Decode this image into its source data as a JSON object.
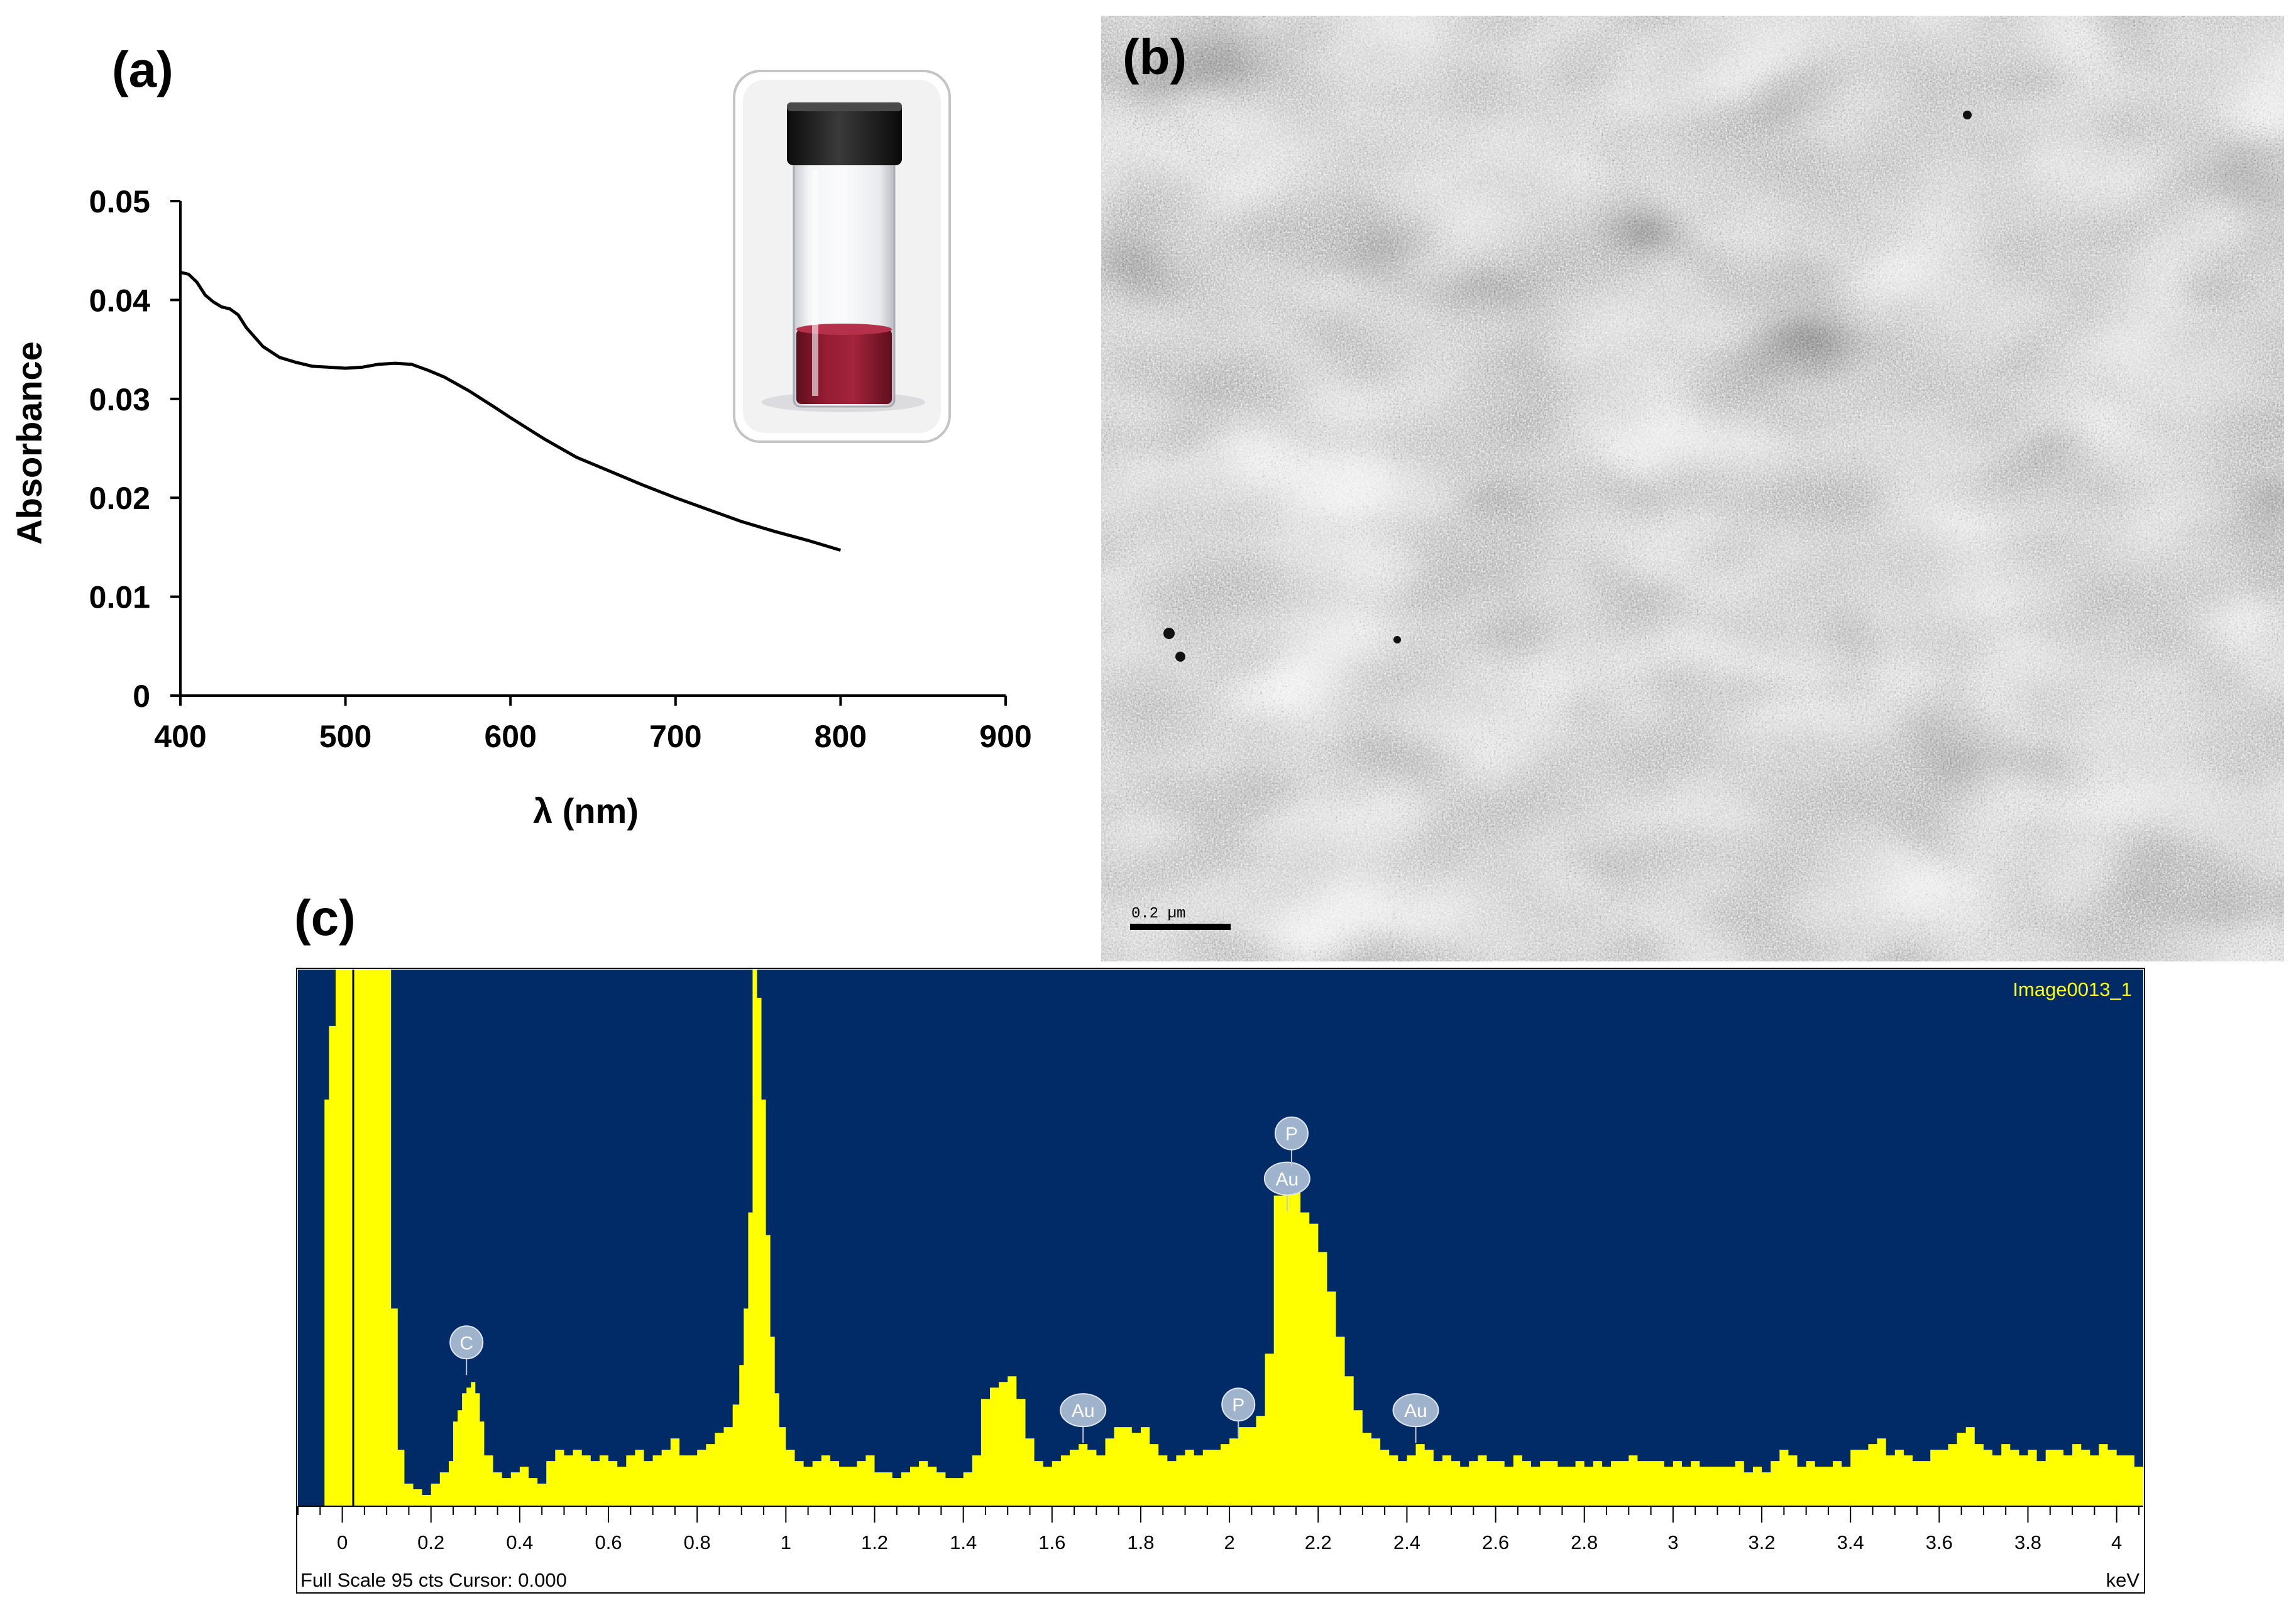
{
  "panels": {
    "a": "(a)",
    "b": "(b)",
    "c": "(c)"
  },
  "colors": {
    "eds_background": "#002b66",
    "eds_spectrum": "#ffff00",
    "peak_label_fill": "#9fb3cc",
    "solution": "#8b1a2c"
  },
  "chart_data": [
    {
      "type": "line",
      "panel": "a",
      "xlabel": "λ (nm)",
      "ylabel": "Absorbance",
      "xlim": [
        400,
        900
      ],
      "ylim": [
        0,
        0.05
      ],
      "xticks": [
        "400",
        "500",
        "600",
        "700",
        "800",
        "900"
      ],
      "yticks": [
        "0",
        "0.01",
        "0.02",
        "0.03",
        "0.04",
        "0.05"
      ],
      "grid": false,
      "inset": "photo of vial containing red gold nanoparticle solution",
      "series": [
        {
          "x": [
            400,
            405,
            410,
            415,
            420,
            425,
            430,
            435,
            440,
            450,
            460,
            470,
            480,
            490,
            500,
            510,
            520,
            530,
            540,
            550,
            560,
            575,
            590,
            600,
            620,
            640,
            660,
            680,
            700,
            720,
            740,
            760,
            780,
            800
          ],
          "y": [
            0.0428,
            0.0426,
            0.0418,
            0.0405,
            0.0398,
            0.0393,
            0.0391,
            0.0385,
            0.0372,
            0.0353,
            0.0342,
            0.0337,
            0.0333,
            0.0332,
            0.0331,
            0.0332,
            0.0335,
            0.0336,
            0.0335,
            0.0329,
            0.0322,
            0.0308,
            0.0292,
            0.0281,
            0.026,
            0.0241,
            0.0227,
            0.0213,
            0.02,
            0.0188,
            0.0176,
            0.0166,
            0.0157,
            0.0147
          ]
        }
      ]
    },
    {
      "type": "bar",
      "panel": "c",
      "title": "Image0013_1",
      "xlabel": "keV",
      "xlim": [
        -0.1,
        4.06
      ],
      "ylim": [
        0,
        95
      ],
      "xticks": [
        "0",
        "0.2",
        "0.4",
        "0.6",
        "0.8",
        "1",
        "1.2",
        "1.4",
        "1.6",
        "1.8",
        "2",
        "2.2",
        "2.4",
        "2.6",
        "2.8",
        "3",
        "3.2",
        "3.4",
        "3.6",
        "3.8",
        "4"
      ],
      "footer_left": "Full Scale 95 cts Cursor: 0.000",
      "peaks": [
        {
          "label": "C",
          "x": 0.28,
          "y": 29
        },
        {
          "label": "Au",
          "x": 1.67,
          "y": 17
        },
        {
          "label": "P",
          "x": 2.02,
          "y": 18
        },
        {
          "label": "Au",
          "x": 2.13,
          "y": 58
        },
        {
          "label": "P",
          "x": 2.14,
          "y": 66
        },
        {
          "label": "Au",
          "x": 2.42,
          "y": 17
        }
      ],
      "anchors": [
        [
          -0.1,
          0
        ],
        [
          -0.05,
          0
        ],
        [
          -0.04,
          72
        ],
        [
          -0.03,
          85
        ],
        [
          -0.015,
          100
        ],
        [
          0.1,
          100
        ],
        [
          0.11,
          35
        ],
        [
          0.125,
          10
        ],
        [
          0.14,
          4
        ],
        [
          0.16,
          3
        ],
        [
          0.18,
          2
        ],
        [
          0.2,
          4
        ],
        [
          0.22,
          6
        ],
        [
          0.24,
          8
        ],
        [
          0.25,
          15
        ],
        [
          0.26,
          17
        ],
        [
          0.27,
          20
        ],
        [
          0.28,
          21
        ],
        [
          0.29,
          22
        ],
        [
          0.3,
          20
        ],
        [
          0.31,
          15
        ],
        [
          0.32,
          9
        ],
        [
          0.34,
          6
        ],
        [
          0.36,
          5
        ],
        [
          0.38,
          6
        ],
        [
          0.4,
          7
        ],
        [
          0.42,
          5
        ],
        [
          0.44,
          4
        ],
        [
          0.46,
          8
        ],
        [
          0.48,
          10
        ],
        [
          0.5,
          9
        ],
        [
          0.52,
          10
        ],
        [
          0.54,
          9
        ],
        [
          0.56,
          8
        ],
        [
          0.58,
          9
        ],
        [
          0.6,
          8
        ],
        [
          0.62,
          7
        ],
        [
          0.64,
          9
        ],
        [
          0.66,
          10
        ],
        [
          0.68,
          8
        ],
        [
          0.7,
          9
        ],
        [
          0.72,
          10
        ],
        [
          0.74,
          12
        ],
        [
          0.76,
          9
        ],
        [
          0.78,
          9
        ],
        [
          0.8,
          10
        ],
        [
          0.82,
          11
        ],
        [
          0.84,
          13
        ],
        [
          0.86,
          14
        ],
        [
          0.88,
          18
        ],
        [
          0.895,
          25
        ],
        [
          0.905,
          35
        ],
        [
          0.915,
          52
        ],
        [
          0.925,
          100
        ],
        [
          0.935,
          90
        ],
        [
          0.945,
          72
        ],
        [
          0.955,
          48
        ],
        [
          0.965,
          30
        ],
        [
          0.975,
          20
        ],
        [
          0.985,
          14
        ],
        [
          1.0,
          10
        ],
        [
          1.02,
          8
        ],
        [
          1.04,
          7
        ],
        [
          1.06,
          8
        ],
        [
          1.08,
          9
        ],
        [
          1.1,
          8
        ],
        [
          1.12,
          7
        ],
        [
          1.14,
          7
        ],
        [
          1.16,
          8
        ],
        [
          1.18,
          9
        ],
        [
          1.2,
          6
        ],
        [
          1.22,
          6
        ],
        [
          1.24,
          5
        ],
        [
          1.26,
          6
        ],
        [
          1.28,
          7
        ],
        [
          1.3,
          8
        ],
        [
          1.32,
          7
        ],
        [
          1.34,
          6
        ],
        [
          1.36,
          5
        ],
        [
          1.38,
          5
        ],
        [
          1.4,
          6
        ],
        [
          1.42,
          9
        ],
        [
          1.44,
          19
        ],
        [
          1.46,
          21
        ],
        [
          1.48,
          22
        ],
        [
          1.5,
          23
        ],
        [
          1.52,
          19
        ],
        [
          1.54,
          12
        ],
        [
          1.56,
          8
        ],
        [
          1.58,
          7
        ],
        [
          1.6,
          8
        ],
        [
          1.62,
          9
        ],
        [
          1.64,
          10
        ],
        [
          1.66,
          11
        ],
        [
          1.68,
          10
        ],
        [
          1.7,
          9
        ],
        [
          1.72,
          12
        ],
        [
          1.74,
          14
        ],
        [
          1.76,
          14
        ],
        [
          1.78,
          13
        ],
        [
          1.8,
          14
        ],
        [
          1.82,
          11
        ],
        [
          1.84,
          9
        ],
        [
          1.86,
          8
        ],
        [
          1.88,
          9
        ],
        [
          1.9,
          10
        ],
        [
          1.92,
          9
        ],
        [
          1.94,
          10
        ],
        [
          1.96,
          10
        ],
        [
          1.98,
          11
        ],
        [
          2.0,
          12
        ],
        [
          2.02,
          14
        ],
        [
          2.04,
          14
        ],
        [
          2.06,
          16
        ],
        [
          2.08,
          27
        ],
        [
          2.1,
          55
        ],
        [
          2.12,
          56
        ],
        [
          2.14,
          57
        ],
        [
          2.16,
          52
        ],
        [
          2.18,
          50
        ],
        [
          2.2,
          45
        ],
        [
          2.22,
          38
        ],
        [
          2.24,
          30
        ],
        [
          2.26,
          23
        ],
        [
          2.28,
          17
        ],
        [
          2.3,
          13
        ],
        [
          2.32,
          12
        ],
        [
          2.34,
          10
        ],
        [
          2.36,
          9
        ],
        [
          2.38,
          8
        ],
        [
          2.4,
          9
        ],
        [
          2.42,
          11
        ],
        [
          2.44,
          10
        ],
        [
          2.46,
          8
        ],
        [
          2.48,
          9
        ],
        [
          2.5,
          8
        ],
        [
          2.52,
          7
        ],
        [
          2.54,
          8
        ],
        [
          2.56,
          9
        ],
        [
          2.58,
          8
        ],
        [
          2.6,
          8
        ],
        [
          2.62,
          7
        ],
        [
          2.64,
          9
        ],
        [
          2.66,
          8
        ],
        [
          2.68,
          7
        ],
        [
          2.7,
          8
        ],
        [
          2.72,
          8
        ],
        [
          2.74,
          7
        ],
        [
          2.76,
          7
        ],
        [
          2.78,
          8
        ],
        [
          2.8,
          7
        ],
        [
          2.82,
          8
        ],
        [
          2.84,
          7
        ],
        [
          2.86,
          8
        ],
        [
          2.88,
          8
        ],
        [
          2.9,
          9
        ],
        [
          2.92,
          8
        ],
        [
          2.94,
          8
        ],
        [
          2.96,
          8
        ],
        [
          2.98,
          7
        ],
        [
          3.0,
          8
        ],
        [
          3.02,
          7
        ],
        [
          3.04,
          8
        ],
        [
          3.06,
          7
        ],
        [
          3.08,
          7
        ],
        [
          3.1,
          7
        ],
        [
          3.12,
          7
        ],
        [
          3.14,
          8
        ],
        [
          3.16,
          6
        ],
        [
          3.18,
          7
        ],
        [
          3.2,
          6
        ],
        [
          3.22,
          8
        ],
        [
          3.24,
          10
        ],
        [
          3.26,
          9
        ],
        [
          3.28,
          7
        ],
        [
          3.3,
          8
        ],
        [
          3.32,
          7
        ],
        [
          3.34,
          7
        ],
        [
          3.36,
          8
        ],
        [
          3.38,
          7
        ],
        [
          3.4,
          10
        ],
        [
          3.42,
          10
        ],
        [
          3.44,
          11
        ],
        [
          3.46,
          12
        ],
        [
          3.48,
          9
        ],
        [
          3.5,
          10
        ],
        [
          3.52,
          9
        ],
        [
          3.54,
          8
        ],
        [
          3.56,
          8
        ],
        [
          3.58,
          10
        ],
        [
          3.6,
          10
        ],
        [
          3.62,
          11
        ],
        [
          3.64,
          13
        ],
        [
          3.66,
          14
        ],
        [
          3.68,
          11
        ],
        [
          3.7,
          10
        ],
        [
          3.72,
          9
        ],
        [
          3.74,
          11
        ],
        [
          3.76,
          10
        ],
        [
          3.78,
          9
        ],
        [
          3.8,
          10
        ],
        [
          3.82,
          8
        ],
        [
          3.84,
          10
        ],
        [
          3.86,
          10
        ],
        [
          3.88,
          9
        ],
        [
          3.9,
          11
        ],
        [
          3.92,
          10
        ],
        [
          3.94,
          9
        ],
        [
          3.96,
          11
        ],
        [
          3.98,
          10
        ],
        [
          4.0,
          9
        ],
        [
          4.02,
          9
        ],
        [
          4.04,
          7
        ],
        [
          4.06,
          7
        ]
      ]
    }
  ],
  "tem": {
    "scale_bar_label": "0.2 µm"
  }
}
